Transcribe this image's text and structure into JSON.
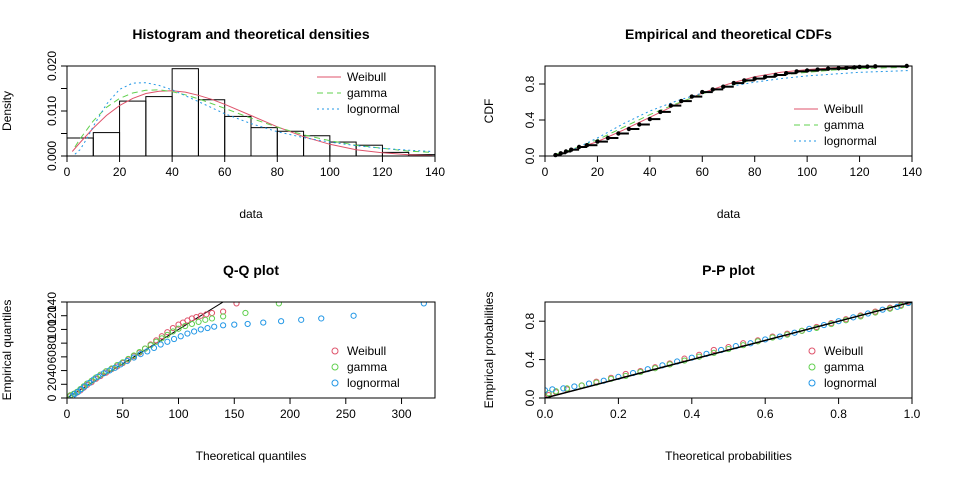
{
  "colors": {
    "weibull": "#DF536B",
    "gamma": "#61D04F",
    "lognormal": "#2297E6",
    "axis": "#000000"
  },
  "chart_data": [
    {
      "id": "hist",
      "type": "bar",
      "title": "Histogram and theoretical densities",
      "xlabel": "data",
      "ylabel": "Density",
      "xlim": [
        0,
        140
      ],
      "ylim": [
        0,
        0.02
      ],
      "xticks": [
        0,
        20,
        40,
        60,
        80,
        100,
        120,
        140
      ],
      "yticks": [
        0.0,
        0.005,
        0.01,
        0.015,
        0.02
      ],
      "ytick_labels": [
        "0.000",
        "0.010",
        "0.020"
      ],
      "bins": [
        {
          "x0": 0,
          "x1": 10,
          "density": 0.004
        },
        {
          "x0": 10,
          "x1": 20,
          "density": 0.0052
        },
        {
          "x0": 20,
          "x1": 30,
          "density": 0.0122
        },
        {
          "x0": 30,
          "x1": 40,
          "density": 0.0132
        },
        {
          "x0": 40,
          "x1": 50,
          "density": 0.0194
        },
        {
          "x0": 50,
          "x1": 60,
          "density": 0.0125
        },
        {
          "x0": 60,
          "x1": 70,
          "density": 0.0088
        },
        {
          "x0": 70,
          "x1": 80,
          "density": 0.0063
        },
        {
          "x0": 80,
          "x1": 90,
          "density": 0.0055
        },
        {
          "x0": 90,
          "x1": 100,
          "density": 0.0045
        },
        {
          "x0": 100,
          "x1": 110,
          "density": 0.0031
        },
        {
          "x0": 110,
          "x1": 120,
          "density": 0.0024
        },
        {
          "x0": 120,
          "x1": 130,
          "density": 0.0008
        },
        {
          "x0": 130,
          "x1": 140,
          "density": 0.0003
        }
      ],
      "series": [
        {
          "name": "Weibull",
          "color": "weibull",
          "dash": "solid",
          "x": [
            2,
            5,
            10,
            15,
            20,
            25,
            30,
            35,
            40,
            45,
            50,
            55,
            60,
            70,
            80,
            90,
            100,
            110,
            120,
            130,
            139
          ],
          "y": [
            0.001,
            0.003,
            0.0062,
            0.009,
            0.0112,
            0.0128,
            0.0139,
            0.0144,
            0.0145,
            0.0142,
            0.0135,
            0.0126,
            0.0115,
            0.009,
            0.0065,
            0.0043,
            0.0026,
            0.0014,
            0.0007,
            0.0003,
            0.0001
          ]
        },
        {
          "name": "gamma",
          "color": "gamma",
          "dash": "dashed",
          "x": [
            3,
            5,
            10,
            15,
            20,
            25,
            30,
            35,
            40,
            45,
            50,
            60,
            70,
            80,
            90,
            100,
            110,
            120,
            130,
            139
          ],
          "y": [
            0.002,
            0.0038,
            0.0078,
            0.0108,
            0.0128,
            0.014,
            0.0146,
            0.0147,
            0.0143,
            0.0136,
            0.0127,
            0.0106,
            0.0084,
            0.0064,
            0.0047,
            0.0034,
            0.0024,
            0.0017,
            0.0011,
            0.0008
          ]
        },
        {
          "name": "lognormal",
          "color": "lognormal",
          "dash": "dotted",
          "x": [
            3,
            5,
            8,
            10,
            15,
            20,
            25,
            30,
            35,
            40,
            45,
            50,
            60,
            70,
            80,
            90,
            100,
            110,
            120,
            130,
            139
          ],
          "y": [
            0.0004,
            0.0014,
            0.0043,
            0.0066,
            0.0115,
            0.0148,
            0.0162,
            0.0163,
            0.0157,
            0.0147,
            0.0134,
            0.0121,
            0.0094,
            0.0072,
            0.0054,
            0.0041,
            0.0031,
            0.0023,
            0.0017,
            0.0013,
            0.001
          ]
        }
      ],
      "legend": [
        "Weibull",
        "gamma",
        "lognormal"
      ],
      "legend_position": "top-right"
    },
    {
      "id": "cdf",
      "type": "line",
      "title": "Empirical and theoretical CDFs",
      "xlabel": "data",
      "ylabel": "CDF",
      "xlim": [
        0,
        140
      ],
      "ylim": [
        0,
        1
      ],
      "xticks": [
        0,
        20,
        40,
        60,
        80,
        100,
        120,
        140
      ],
      "yticks": [
        0.0,
        0.4,
        0.8
      ],
      "ytick_labels": [
        "0.0",
        "0.4",
        "0.8"
      ],
      "empirical": {
        "x": [
          4,
          6,
          8,
          10,
          13,
          16,
          20,
          24,
          28,
          32,
          36,
          40,
          44,
          48,
          52,
          56,
          60,
          64,
          68,
          72,
          76,
          80,
          84,
          88,
          92,
          96,
          100,
          104,
          108,
          112,
          115,
          118,
          120,
          123,
          126,
          138
        ],
        "y": [
          0.01,
          0.03,
          0.05,
          0.07,
          0.1,
          0.12,
          0.16,
          0.2,
          0.25,
          0.3,
          0.35,
          0.41,
          0.49,
          0.56,
          0.61,
          0.66,
          0.71,
          0.74,
          0.77,
          0.81,
          0.84,
          0.86,
          0.88,
          0.9,
          0.92,
          0.94,
          0.95,
          0.96,
          0.97,
          0.975,
          0.98,
          0.985,
          0.99,
          0.993,
          0.996,
          1.0
        ]
      },
      "series": [
        {
          "name": "Weibull",
          "color": "weibull",
          "dash": "solid",
          "x": [
            4,
            10,
            20,
            30,
            40,
            50,
            60,
            70,
            80,
            90,
            100,
            110,
            120,
            130,
            139
          ],
          "y": [
            0.01,
            0.06,
            0.16,
            0.29,
            0.43,
            0.57,
            0.7,
            0.8,
            0.88,
            0.93,
            0.96,
            0.98,
            0.99,
            0.995,
            0.998
          ]
        },
        {
          "name": "gamma",
          "color": "gamma",
          "dash": "dashed",
          "x": [
            4,
            10,
            20,
            30,
            40,
            50,
            60,
            70,
            80,
            90,
            100,
            110,
            120,
            130,
            139
          ],
          "y": [
            0.02,
            0.07,
            0.18,
            0.32,
            0.46,
            0.58,
            0.69,
            0.78,
            0.85,
            0.9,
            0.93,
            0.955,
            0.97,
            0.98,
            0.985
          ]
        },
        {
          "name": "lognormal",
          "color": "lognormal",
          "dash": "dotted",
          "x": [
            4,
            10,
            20,
            30,
            40,
            50,
            60,
            70,
            80,
            90,
            100,
            110,
            120,
            130,
            139
          ],
          "y": [
            0.01,
            0.06,
            0.2,
            0.36,
            0.5,
            0.61,
            0.7,
            0.77,
            0.82,
            0.86,
            0.89,
            0.91,
            0.93,
            0.94,
            0.95
          ]
        }
      ],
      "legend": [
        "Weibull",
        "gamma",
        "lognormal"
      ],
      "legend_position": "bottom-right"
    },
    {
      "id": "qq",
      "type": "scatter",
      "title": "Q-Q plot",
      "xlabel": "Theoretical quantiles",
      "ylabel": "Empirical quantiles",
      "xlim": [
        0,
        330
      ],
      "ylim": [
        0,
        140
      ],
      "xticks": [
        0,
        50,
        100,
        150,
        200,
        250,
        300
      ],
      "yticks": [
        0,
        20,
        40,
        60,
        80,
        100,
        120,
        140
      ],
      "ytick_labels": [
        "0",
        "20",
        "40",
        "60",
        "80",
        "100",
        "120",
        "140"
      ],
      "reference_line": [
        [
          0,
          0
        ],
        [
          143,
          143
        ]
      ],
      "series": [
        {
          "name": "Weibull",
          "color": "weibull",
          "x": [
            3,
            6,
            9,
            12,
            15,
            18,
            22,
            26,
            30,
            35,
            40,
            45,
            50,
            55,
            60,
            65,
            70,
            75,
            80,
            85,
            90,
            95,
            100,
            104,
            108,
            112,
            116,
            120,
            125,
            130,
            140,
            152
          ],
          "y": [
            3,
            6,
            8,
            11,
            15,
            19,
            23,
            28,
            32,
            37,
            42,
            46,
            51,
            56,
            61,
            66,
            72,
            78,
            84,
            90,
            96,
            102,
            107,
            110,
            113,
            116,
            118,
            120,
            122,
            124,
            126,
            138
          ]
        },
        {
          "name": "gamma",
          "color": "gamma",
          "x": [
            3,
            6,
            9,
            12,
            15,
            18,
            22,
            26,
            30,
            35,
            40,
            45,
            50,
            55,
            60,
            65,
            70,
            75,
            80,
            85,
            90,
            95,
            100,
            106,
            112,
            118,
            124,
            130,
            140,
            160,
            190
          ],
          "y": [
            4,
            6,
            9,
            13,
            17,
            21,
            25,
            30,
            34,
            39,
            43,
            48,
            52,
            57,
            62,
            67,
            72,
            77,
            82,
            87,
            92,
            97,
            101,
            105,
            108,
            111,
            114,
            116,
            119,
            124,
            138
          ]
        },
        {
          "name": "lognormal",
          "color": "lognormal",
          "x": [
            5,
            7,
            10,
            13,
            16,
            20,
            24,
            28,
            33,
            38,
            43,
            48,
            54,
            60,
            66,
            72,
            78,
            84,
            90,
            96,
            102,
            108,
            114,
            120,
            126,
            132,
            140,
            150,
            162,
            176,
            192,
            210,
            228,
            257,
            320
          ],
          "y": [
            3,
            6,
            9,
            13,
            17,
            22,
            27,
            31,
            36,
            40,
            44,
            49,
            54,
            59,
            64,
            68,
            73,
            78,
            82,
            86,
            90,
            94,
            97,
            100,
            102,
            104,
            106,
            107,
            108,
            110,
            112,
            114,
            116,
            120,
            138
          ]
        }
      ],
      "legend": [
        "Weibull",
        "gamma",
        "lognormal"
      ],
      "legend_position": "bottom-right"
    },
    {
      "id": "pp",
      "type": "scatter",
      "title": "P-P plot",
      "xlabel": "Theoretical probabilities",
      "ylabel": "Empirical probabilities",
      "xlim": [
        0,
        1
      ],
      "ylim": [
        0,
        1
      ],
      "xticks": [
        0.0,
        0.2,
        0.4,
        0.6,
        0.8,
        1.0
      ],
      "xtick_labels": [
        "0.0",
        "0.2",
        "0.4",
        "0.6",
        "0.8",
        "1.0"
      ],
      "yticks": [
        0.0,
        0.4,
        0.8
      ],
      "ytick_labels": [
        "0.0",
        "0.4",
        "0.8"
      ],
      "reference_line": [
        [
          -0.04,
          -0.04
        ],
        [
          1.04,
          1.04
        ]
      ],
      "series": [
        {
          "name": "Weibull",
          "color": "weibull",
          "x": [
            0.01,
            0.03,
            0.06,
            0.1,
            0.14,
            0.18,
            0.22,
            0.26,
            0.3,
            0.34,
            0.38,
            0.42,
            0.46,
            0.5,
            0.54,
            0.58,
            0.62,
            0.66,
            0.7,
            0.74,
            0.78,
            0.82,
            0.86,
            0.9,
            0.94,
            0.97,
            0.99
          ],
          "y": [
            0.03,
            0.06,
            0.09,
            0.13,
            0.17,
            0.21,
            0.25,
            0.28,
            0.32,
            0.36,
            0.41,
            0.45,
            0.5,
            0.53,
            0.57,
            0.6,
            0.64,
            0.67,
            0.7,
            0.74,
            0.78,
            0.82,
            0.86,
            0.9,
            0.94,
            0.97,
            1.0
          ]
        },
        {
          "name": "gamma",
          "color": "gamma",
          "x": [
            0.01,
            0.03,
            0.06,
            0.1,
            0.14,
            0.18,
            0.22,
            0.26,
            0.3,
            0.34,
            0.38,
            0.42,
            0.46,
            0.5,
            0.54,
            0.58,
            0.62,
            0.66,
            0.7,
            0.74,
            0.78,
            0.82,
            0.86,
            0.9,
            0.94,
            0.97,
            0.99
          ],
          "y": [
            0.05,
            0.07,
            0.1,
            0.13,
            0.16,
            0.2,
            0.23,
            0.27,
            0.31,
            0.35,
            0.39,
            0.43,
            0.47,
            0.51,
            0.55,
            0.59,
            0.63,
            0.66,
            0.7,
            0.73,
            0.77,
            0.81,
            0.85,
            0.89,
            0.93,
            0.96,
            0.99
          ]
        },
        {
          "name": "lognormal",
          "color": "lognormal",
          "x": [
            0.0,
            0.02,
            0.05,
            0.08,
            0.12,
            0.16,
            0.2,
            0.24,
            0.28,
            0.32,
            0.36,
            0.4,
            0.44,
            0.48,
            0.52,
            0.56,
            0.6,
            0.64,
            0.68,
            0.72,
            0.76,
            0.8,
            0.84,
            0.88,
            0.92,
            0.96,
            0.99
          ],
          "y": [
            0.08,
            0.09,
            0.1,
            0.12,
            0.15,
            0.18,
            0.22,
            0.26,
            0.3,
            0.34,
            0.38,
            0.42,
            0.46,
            0.5,
            0.54,
            0.57,
            0.61,
            0.64,
            0.68,
            0.72,
            0.76,
            0.8,
            0.84,
            0.88,
            0.92,
            0.95,
            0.99
          ]
        }
      ],
      "legend": [
        "Weibull",
        "gamma",
        "lognormal"
      ],
      "legend_position": "bottom-right"
    }
  ]
}
